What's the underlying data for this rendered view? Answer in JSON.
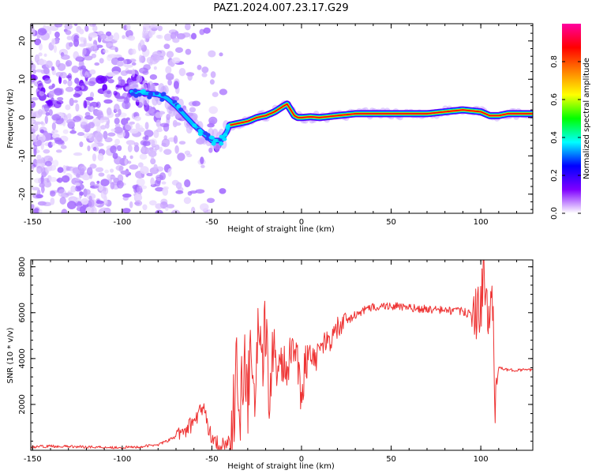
{
  "chart_data": [
    {
      "type": "heatmap",
      "title": "PAZ1.2024.007.23.17.G29",
      "xlabel": "Height of straight line (km)",
      "ylabel": "Frequency (Hz)",
      "xlim": [
        -151,
        129
      ],
      "ylim": [
        -25,
        24.5
      ],
      "x_ticks": [
        -150,
        -100,
        -50,
        0,
        50,
        100
      ],
      "y_ticks": [
        -20,
        -10,
        0,
        10,
        20
      ],
      "colorbar": {
        "label": "Normalized spectral amplitude",
        "range": [
          0,
          1
        ],
        "ticks": [
          0.0,
          0.2,
          0.4,
          0.6,
          0.8
        ],
        "colormap": [
          "#ffffff",
          "#7f00ff",
          "#0000ff",
          "#00ffff",
          "#00ff00",
          "#ffff00",
          "#ff8000",
          "#ff0000",
          "#ff00a0"
        ]
      },
      "ridge": {
        "x": [
          -100,
          -90,
          -80,
          -75,
          -70,
          -65,
          -60,
          -55,
          -50,
          -45,
          -42,
          -40,
          -35,
          -30,
          -25,
          -20,
          -15,
          -10,
          -8,
          -6,
          -4,
          -2,
          0,
          5,
          10,
          20,
          30,
          50,
          70,
          80,
          90,
          100,
          105,
          110,
          115,
          129
        ],
        "y": [
          7,
          6.5,
          6,
          5,
          3,
          0.5,
          -2,
          -4,
          -6,
          -6,
          -4,
          -2,
          -1.5,
          -1,
          0,
          0.5,
          1.5,
          3,
          3.5,
          2,
          0.5,
          0,
          0,
          0.2,
          0,
          0.5,
          1,
          1,
          1,
          1.5,
          2,
          1.5,
          0.5,
          0.5,
          1,
          1
        ]
      }
    },
    {
      "type": "line",
      "title": "",
      "xlabel": "Height of straight line (km)",
      "ylabel": "SNR (10 * v/v)",
      "xlim": [
        -151,
        129
      ],
      "ylim": [
        0,
        8300
      ],
      "x_ticks": [
        -150,
        -100,
        -50,
        0,
        50,
        100
      ],
      "y_ticks": [
        2000,
        4000,
        6000,
        8000
      ],
      "line_color": "#ee3333",
      "series": [
        {
          "x": [
            -151,
            -140,
            -120,
            -100,
            -90,
            -80,
            -75,
            -70,
            -65,
            -60,
            -57,
            -55,
            -52,
            -50,
            -47,
            -45,
            -42,
            -40,
            -38,
            -36,
            -34,
            -32,
            -30,
            -28,
            -26,
            -24,
            -22,
            -20,
            -18,
            -16,
            -14,
            -12,
            -10,
            -8,
            -6,
            -4,
            -2,
            0,
            2,
            5,
            8,
            10,
            15,
            20,
            25,
            30,
            35,
            40,
            50,
            60,
            70,
            80,
            90,
            95,
            100,
            102,
            104,
            106,
            107,
            108,
            110,
            115,
            120,
            129
          ],
          "y": [
            150,
            180,
            150,
            120,
            150,
            250,
            400,
            600,
            900,
            1200,
            1700,
            1900,
            1000,
            600,
            300,
            200,
            250,
            400,
            1500,
            3600,
            2000,
            3800,
            2200,
            4000,
            2400,
            5000,
            2800,
            5500,
            3000,
            4200,
            3500,
            4000,
            3800,
            3600,
            4400,
            4800,
            3800,
            2200,
            3800,
            4400,
            3800,
            4600,
            4700,
            5300,
            5600,
            5900,
            6100,
            6250,
            6300,
            6200,
            6150,
            6100,
            6050,
            5900,
            6200,
            7800,
            5200,
            6800,
            5500,
            2200,
            3600,
            3500,
            3500,
            3500
          ]
        }
      ]
    }
  ]
}
